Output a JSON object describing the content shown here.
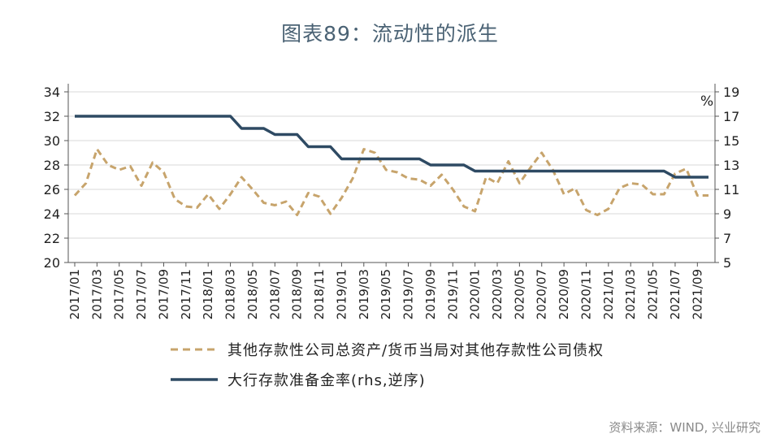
{
  "chart_data": {
    "type": "line",
    "title": "图表89：流动性的派生",
    "y2_unit_label": "%",
    "source": "资料来源：WIND, 兴业研究",
    "ylim": [
      20,
      34
    ],
    "y_ticks": [
      20,
      22,
      24,
      26,
      28,
      30,
      32,
      34
    ],
    "y2lim": [
      5,
      19
    ],
    "y2_ticks": [
      5,
      7,
      9,
      11,
      13,
      15,
      17,
      19
    ],
    "y2_inverted_note": "逆序",
    "x": [
      "2017/01",
      "2017/02",
      "2017/03",
      "2017/04",
      "2017/05",
      "2017/06",
      "2017/07",
      "2017/08",
      "2017/09",
      "2017/10",
      "2017/11",
      "2017/12",
      "2018/01",
      "2018/02",
      "2018/03",
      "2018/04",
      "2018/05",
      "2018/06",
      "2018/07",
      "2018/08",
      "2018/09",
      "2018/10",
      "2018/11",
      "2018/12",
      "2019/01",
      "2019/02",
      "2019/03",
      "2019/04",
      "2019/05",
      "2019/06",
      "2019/07",
      "2019/08",
      "2019/09",
      "2019/10",
      "2019/11",
      "2019/12",
      "2020/01",
      "2020/02",
      "2020/03",
      "2020/04",
      "2020/05",
      "2020/06",
      "2020/07",
      "2020/08",
      "2020/09",
      "2020/10",
      "2020/11",
      "2020/12",
      "2021/01",
      "2021/02",
      "2021/03",
      "2021/04",
      "2021/05",
      "2021/06",
      "2021/07",
      "2021/08",
      "2021/09",
      "2021/10"
    ],
    "x_tick_labels": [
      "2017/01",
      "2017/03",
      "2017/05",
      "2017/07",
      "2017/09",
      "2017/11",
      "2018/01",
      "2018/03",
      "2018/05",
      "2018/07",
      "2018/09",
      "2018/11",
      "2019/01",
      "2019/03",
      "2019/05",
      "2019/07",
      "2019/09",
      "2019/11",
      "2020/01",
      "2020/03",
      "2020/05",
      "2020/07",
      "2020/09",
      "2020/11",
      "2021/01",
      "2021/03",
      "2021/05",
      "2021/07",
      "2021/09"
    ],
    "series": [
      {
        "name": "其他存款性公司总资产/货币当局对其他存款性公司债权",
        "axis": "left",
        "style": "dashed",
        "color": "#c7a46c",
        "values": [
          25.5,
          26.5,
          29.3,
          28.0,
          27.6,
          27.9,
          26.3,
          28.2,
          27.4,
          25.2,
          24.6,
          24.5,
          25.6,
          24.4,
          25.6,
          27.0,
          26.0,
          24.9,
          24.7,
          25.0,
          23.9,
          25.7,
          25.4,
          24.0,
          25.3,
          26.9,
          29.3,
          29.0,
          27.6,
          27.4,
          26.9,
          26.8,
          26.3,
          27.2,
          26.0,
          24.6,
          24.2,
          27.0,
          26.5,
          28.3,
          26.5,
          27.8,
          29.0,
          27.6,
          25.6,
          26.1,
          24.3,
          23.9,
          24.4,
          26.1,
          26.5,
          26.4,
          25.6,
          25.6,
          27.3,
          27.7,
          25.5,
          25.5
        ]
      },
      {
        "name": "大行存款准备金率(rhs,逆序)",
        "axis": "right",
        "inverted": true,
        "style": "solid",
        "color": "#2e4a63",
        "values": [
          17,
          17,
          17,
          17,
          17,
          17,
          17,
          17,
          17,
          17,
          17,
          17,
          17,
          17,
          17,
          16,
          16,
          16,
          15.5,
          15.5,
          15.5,
          14.5,
          14.5,
          14.5,
          13.5,
          13.5,
          13.5,
          13.5,
          13.5,
          13.5,
          13.5,
          13.5,
          13,
          13,
          13,
          13,
          12.5,
          12.5,
          12.5,
          12.5,
          12.5,
          12.5,
          12.5,
          12.5,
          12.5,
          12.5,
          12.5,
          12.5,
          12.5,
          12.5,
          12.5,
          12.5,
          12.5,
          12.5,
          12,
          12,
          12,
          12
        ]
      }
    ],
    "grid": true,
    "legend_position": "bottom"
  }
}
